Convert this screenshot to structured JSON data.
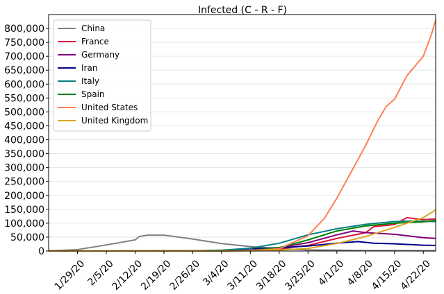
{
  "chart_data": {
    "type": "line",
    "title": "Infected (C - R - F)",
    "xlabel": "",
    "ylabel": "",
    "x_tick_labels": [
      "1/29/20",
      "2/5/20",
      "2/12/20",
      "2/19/20",
      "2/26/20",
      "3/4/20",
      "3/11/20",
      "3/18/20",
      "3/25/20",
      "4/1/20",
      "4/8/20",
      "4/15/20",
      "4/22/20"
    ],
    "y_tick_labels": [
      "0",
      "50,000",
      "100,000",
      "150,000",
      "200,000",
      "250,000",
      "300,000",
      "350,000",
      "400,000",
      "450,000",
      "500,000",
      "550,000",
      "600,000",
      "650,000",
      "700,000",
      "750,000",
      "800,000"
    ],
    "ylim": [
      0,
      850000
    ],
    "xlim": [
      "2020-01-22",
      "2020-04-25"
    ],
    "grid": true,
    "legend_position": "top-left",
    "series": [
      {
        "name": "China",
        "color": "#808080",
        "points": [
          [
            "2020-01-22",
            500
          ],
          [
            "2020-01-29",
            5000
          ],
          [
            "2020-02-05",
            22000
          ],
          [
            "2020-02-12",
            40000
          ],
          [
            "2020-02-13",
            52000
          ],
          [
            "2020-02-15",
            57000
          ],
          [
            "2020-02-19",
            57000
          ],
          [
            "2020-02-26",
            43000
          ],
          [
            "2020-03-04",
            27000
          ],
          [
            "2020-03-11",
            16000
          ],
          [
            "2020-03-18",
            8000
          ],
          [
            "2020-03-25",
            4000
          ],
          [
            "2020-04-01",
            3000
          ],
          [
            "2020-04-08",
            1500
          ],
          [
            "2020-04-15",
            1500
          ],
          [
            "2020-04-22",
            1000
          ],
          [
            "2020-04-25",
            900
          ]
        ]
      },
      {
        "name": "France",
        "color": "#dc143c",
        "points": [
          [
            "2020-01-22",
            0
          ],
          [
            "2020-03-04",
            200
          ],
          [
            "2020-03-11",
            2000
          ],
          [
            "2020-03-18",
            8000
          ],
          [
            "2020-03-25",
            20000
          ],
          [
            "2020-04-01",
            45000
          ],
          [
            "2020-04-08",
            66000
          ],
          [
            "2020-04-10",
            88000
          ],
          [
            "2020-04-15",
            95000
          ],
          [
            "2020-04-18",
            120000
          ],
          [
            "2020-04-22",
            113000
          ],
          [
            "2020-04-25",
            115000
          ]
        ]
      },
      {
        "name": "Germany",
        "color": "#800080",
        "points": [
          [
            "2020-01-22",
            0
          ],
          [
            "2020-03-04",
            200
          ],
          [
            "2020-03-11",
            2000
          ],
          [
            "2020-03-18",
            12000
          ],
          [
            "2020-03-25",
            30000
          ],
          [
            "2020-04-01",
            58000
          ],
          [
            "2020-04-05",
            72000
          ],
          [
            "2020-04-08",
            66000
          ],
          [
            "2020-04-15",
            60000
          ],
          [
            "2020-04-22",
            48000
          ],
          [
            "2020-04-25",
            45000
          ]
        ]
      },
      {
        "name": "Iran",
        "color": "#00008b",
        "points": [
          [
            "2020-01-22",
            0
          ],
          [
            "2020-02-26",
            200
          ],
          [
            "2020-03-04",
            2500
          ],
          [
            "2020-03-11",
            8000
          ],
          [
            "2020-03-18",
            12000
          ],
          [
            "2020-03-25",
            18000
          ],
          [
            "2020-04-01",
            28000
          ],
          [
            "2020-04-06",
            34000
          ],
          [
            "2020-04-10",
            28000
          ],
          [
            "2020-04-15",
            26000
          ],
          [
            "2020-04-22",
            21000
          ],
          [
            "2020-04-25",
            20000
          ]
        ]
      },
      {
        "name": "Italy",
        "color": "#008080",
        "points": [
          [
            "2020-01-22",
            0
          ],
          [
            "2020-02-26",
            500
          ],
          [
            "2020-03-04",
            3000
          ],
          [
            "2020-03-11",
            10000
          ],
          [
            "2020-03-18",
            28000
          ],
          [
            "2020-03-25",
            58000
          ],
          [
            "2020-04-01",
            80000
          ],
          [
            "2020-04-08",
            96000
          ],
          [
            "2020-04-15",
            106000
          ],
          [
            "2020-04-19",
            108000
          ],
          [
            "2020-04-22",
            107000
          ],
          [
            "2020-04-25",
            106000
          ]
        ]
      },
      {
        "name": "Spain",
        "color": "#008000",
        "points": [
          [
            "2020-01-22",
            0
          ],
          [
            "2020-03-04",
            200
          ],
          [
            "2020-03-11",
            2000
          ],
          [
            "2020-03-18",
            12000
          ],
          [
            "2020-03-25",
            40000
          ],
          [
            "2020-04-01",
            72000
          ],
          [
            "2020-04-08",
            90000
          ],
          [
            "2020-04-15",
            100000
          ],
          [
            "2020-04-22",
            105000
          ],
          [
            "2020-04-25",
            110000
          ]
        ]
      },
      {
        "name": "United States",
        "color": "#ff7f50",
        "points": [
          [
            "2020-01-22",
            0
          ],
          [
            "2020-03-04",
            200
          ],
          [
            "2020-03-11",
            1500
          ],
          [
            "2020-03-18",
            8000
          ],
          [
            "2020-03-25",
            55000
          ],
          [
            "2020-03-29",
            118000
          ],
          [
            "2020-04-01",
            190000
          ],
          [
            "2020-04-05",
            298000
          ],
          [
            "2020-04-08",
            380000
          ],
          [
            "2020-04-11",
            470000
          ],
          [
            "2020-04-13",
            520000
          ],
          [
            "2020-04-15",
            545000
          ],
          [
            "2020-04-18",
            630000
          ],
          [
            "2020-04-22",
            700000
          ],
          [
            "2020-04-24",
            780000
          ],
          [
            "2020-04-25",
            830000
          ]
        ]
      },
      {
        "name": "United Kingdom",
        "color": "#daa520",
        "points": [
          [
            "2020-01-22",
            0
          ],
          [
            "2020-03-11",
            500
          ],
          [
            "2020-03-18",
            3000
          ],
          [
            "2020-03-25",
            9000
          ],
          [
            "2020-04-01",
            27000
          ],
          [
            "2020-04-08",
            52000
          ],
          [
            "2020-04-15",
            85000
          ],
          [
            "2020-04-22",
            120000
          ],
          [
            "2020-04-25",
            148000
          ]
        ]
      }
    ]
  }
}
